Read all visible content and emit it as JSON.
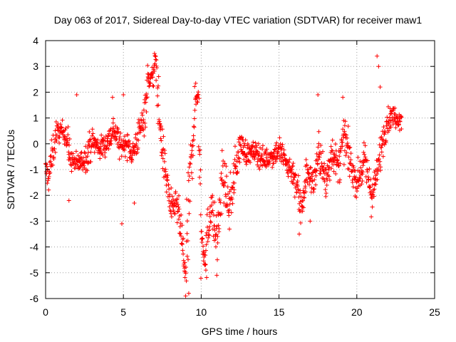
{
  "chart_data": {
    "type": "scatter",
    "title": "Day 063 of 2017, Sidereal Day-to-day VTEC variation (SDTVAR) for receiver maw1",
    "xlabel": "GPS time / hours",
    "ylabel": "SDTVAR / TECUs",
    "xlim": [
      0,
      25
    ],
    "ylim": [
      -6,
      4
    ],
    "x_ticks": [
      "0",
      "5",
      "10",
      "15",
      "20",
      "25"
    ],
    "y_ticks": [
      "4",
      "3",
      "2",
      "1",
      "0",
      "-1",
      "-2",
      "-3",
      "-4",
      "-5",
      "-6"
    ],
    "marker": "+",
    "grid": true,
    "series": [
      {
        "name": "SDTVAR",
        "color": "#ff0000",
        "trend": [
          [
            0.0,
            -1.0
          ],
          [
            0.2,
            -1.3
          ],
          [
            0.4,
            -0.5
          ],
          [
            0.7,
            0.4
          ],
          [
            1.0,
            0.5
          ],
          [
            1.3,
            0.4
          ],
          [
            1.6,
            -0.6
          ],
          [
            2.0,
            -0.8
          ],
          [
            2.5,
            -0.6
          ],
          [
            3.0,
            0.1
          ],
          [
            3.5,
            -0.2
          ],
          [
            4.0,
            0.1
          ],
          [
            4.4,
            0.6
          ],
          [
            4.8,
            -0.1
          ],
          [
            5.2,
            0.0
          ],
          [
            5.6,
            -0.4
          ],
          [
            6.0,
            0.4
          ],
          [
            6.3,
            1.0
          ],
          [
            6.6,
            2.5
          ],
          [
            6.9,
            2.6
          ],
          [
            7.1,
            3.2
          ],
          [
            7.3,
            1.0
          ],
          [
            7.5,
            -0.2
          ],
          [
            7.8,
            -1.5
          ],
          [
            8.1,
            -2.6
          ],
          [
            8.4,
            -2.3
          ],
          [
            8.7,
            -3.4
          ],
          [
            9.0,
            -5.2
          ],
          [
            9.3,
            -1.2
          ],
          [
            9.6,
            1.5
          ],
          [
            9.8,
            2.1
          ],
          [
            10.0,
            -3.5
          ],
          [
            10.3,
            -4.5
          ],
          [
            10.6,
            -2.2
          ],
          [
            11.0,
            -3.8
          ],
          [
            11.4,
            -1.2
          ],
          [
            11.8,
            -2.5
          ],
          [
            12.2,
            -1.0
          ],
          [
            12.5,
            0.0
          ],
          [
            13.0,
            -0.4
          ],
          [
            13.5,
            -0.3
          ],
          [
            14.0,
            -0.6
          ],
          [
            14.5,
            -0.5
          ],
          [
            15.0,
            -0.2
          ],
          [
            15.5,
            -0.8
          ],
          [
            16.0,
            -1.2
          ],
          [
            16.4,
            -2.5
          ],
          [
            16.8,
            -1.1
          ],
          [
            17.2,
            -1.5
          ],
          [
            17.6,
            -0.3
          ],
          [
            18.0,
            -1.6
          ],
          [
            18.4,
            -0.2
          ],
          [
            18.8,
            -1.0
          ],
          [
            19.2,
            0.3
          ],
          [
            19.6,
            -0.8
          ],
          [
            20.0,
            -1.5
          ],
          [
            20.5,
            -0.7
          ],
          [
            21.0,
            -2.0
          ],
          [
            21.3,
            -1.2
          ],
          [
            21.6,
            0.0
          ],
          [
            21.9,
            0.8
          ],
          [
            22.3,
            1.1
          ],
          [
            22.7,
            1.0
          ],
          [
            22.9,
            0.9
          ]
        ],
        "outliers": [
          [
            2.0,
            1.9
          ],
          [
            4.3,
            1.8
          ],
          [
            5.0,
            1.9
          ],
          [
            4.9,
            -3.1
          ],
          [
            5.7,
            -2.3
          ],
          [
            7.0,
            3.5
          ],
          [
            9.0,
            -5.9
          ],
          [
            9.2,
            -5.8
          ],
          [
            10.3,
            -4.9
          ],
          [
            11.0,
            -5.1
          ],
          [
            21.3,
            3.4
          ],
          [
            21.4,
            3.0
          ],
          [
            21.5,
            2.2
          ],
          [
            16.3,
            -3.5
          ],
          [
            17.0,
            -3.0
          ],
          [
            1.5,
            -2.2
          ],
          [
            19.1,
            1.8
          ],
          [
            17.5,
            1.9
          ]
        ]
      }
    ]
  }
}
